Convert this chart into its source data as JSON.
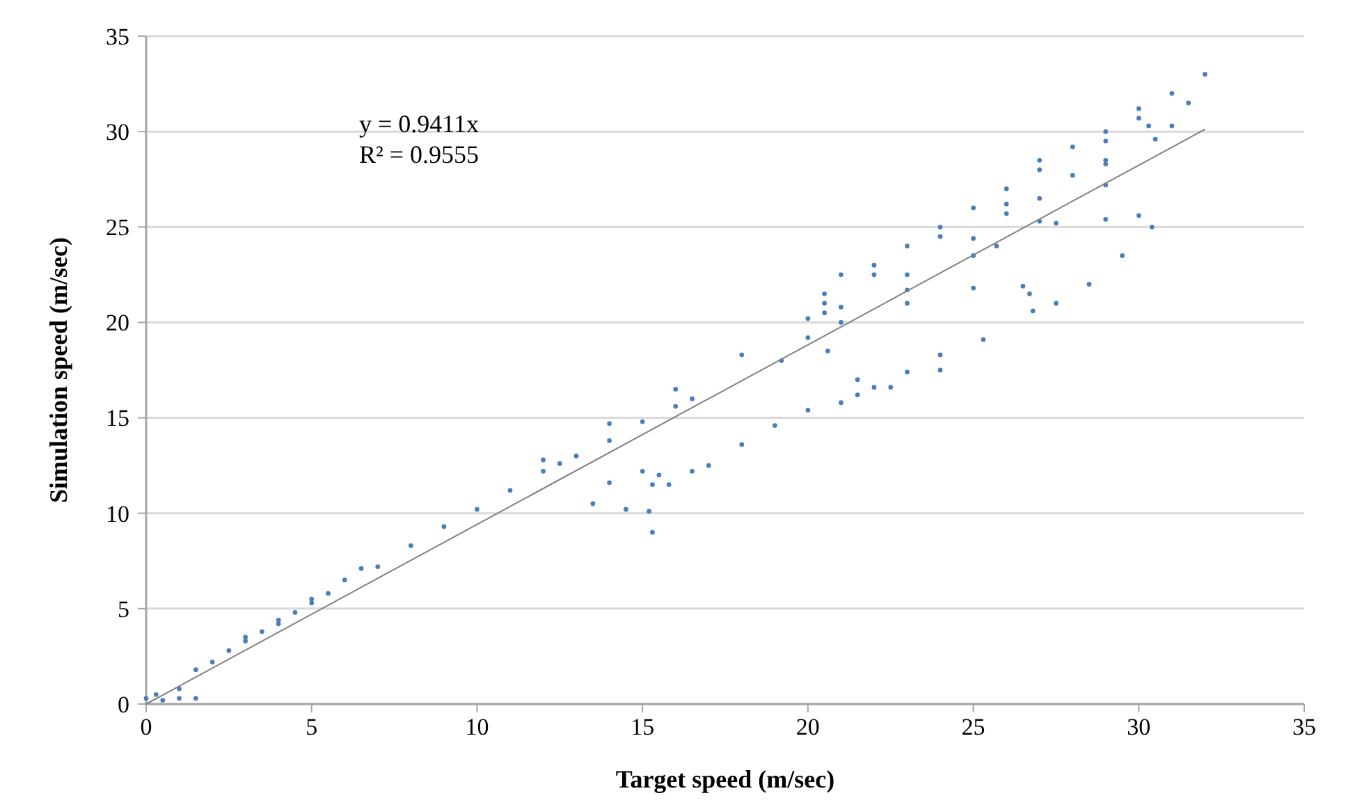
{
  "chart_data": {
    "type": "scatter",
    "xlabel": "Target speed (m/sec)",
    "ylabel": "Simulation speed (m/sec)",
    "annotations": [
      "y = 0.9411x",
      "R² = 0.9555"
    ],
    "xlim": [
      0,
      35
    ],
    "ylim": [
      0,
      35
    ],
    "xticks": [
      0,
      5,
      10,
      15,
      20,
      25,
      30,
      35
    ],
    "yticks": [
      0,
      5,
      10,
      15,
      20,
      25,
      30,
      35
    ],
    "grid": "y",
    "series": [
      {
        "marker": "circle",
        "color": "#4a7ebb",
        "x": [
          0,
          0.3,
          0.5,
          1,
          1.5,
          1,
          1.5,
          2,
          2.5,
          3,
          3.5,
          4,
          4.5,
          5,
          5.5,
          6,
          6.5,
          3,
          4,
          5,
          7,
          8,
          9,
          10,
          11,
          12,
          12.5,
          13,
          14,
          15,
          16,
          16.5,
          12,
          14,
          16,
          18,
          20,
          15.5,
          15,
          14,
          13.5,
          14.5,
          15.2,
          15.3,
          15.3,
          15.8,
          16.5,
          17,
          18,
          19,
          20,
          21,
          21.5,
          20.5,
          20.6,
          21.5,
          22.5,
          24,
          25.3,
          24,
          23,
          22,
          19.2,
          20,
          20.5,
          21,
          22,
          23,
          24,
          25,
          26,
          27,
          28,
          29,
          30,
          30.3,
          29,
          27,
          30,
          31,
          32,
          31.5,
          31,
          30.5,
          29,
          28,
          26,
          24,
          22,
          20.5,
          21,
          23,
          25,
          27,
          29,
          21,
          23,
          25,
          27,
          29,
          25.7,
          26,
          27.5,
          29,
          30,
          30.4,
          29.5,
          28.5,
          27.5,
          26.8,
          26.7,
          26.5,
          25,
          23
        ],
        "values": [
          0.3,
          0.5,
          0.2,
          0.8,
          1.8,
          0.3,
          0.3,
          2.2,
          2.8,
          3.3,
          3.8,
          4.2,
          4.8,
          5.3,
          5.8,
          6.5,
          7.1,
          3.5,
          4.4,
          5.5,
          7.2,
          8.3,
          9.3,
          10.2,
          11.2,
          12.2,
          12.6,
          13,
          13.8,
          14.8,
          15.6,
          16,
          12.8,
          14.7,
          16.5,
          18.3,
          20.2,
          12,
          12.2,
          11.6,
          10.5,
          10.2,
          10.1,
          9,
          11.5,
          11.5,
          12.2,
          12.5,
          13.6,
          14.6,
          15.4,
          15.8,
          16.2,
          20.5,
          18.5,
          17,
          16.6,
          17.5,
          19.1,
          18.3,
          17.4,
          16.6,
          18,
          19.2,
          21.5,
          22.5,
          23,
          24,
          25,
          26,
          27,
          28,
          29.2,
          30,
          30.7,
          30.3,
          29.5,
          28.5,
          31.2,
          32,
          33,
          31.5,
          30.3,
          29.6,
          28.5,
          27.7,
          26.2,
          24.5,
          22.5,
          21,
          20.8,
          22.5,
          24.4,
          26.5,
          28.3,
          20,
          21.7,
          23.5,
          25.3,
          27.2,
          24,
          25.7,
          25.2,
          25.4,
          25.6,
          25,
          23.5,
          22,
          21,
          20.6,
          21.5,
          21.9,
          21.8,
          21
        ]
      },
      {
        "type": "line",
        "color": "#808080",
        "x": [
          0,
          32
        ],
        "values": [
          0,
          30.12
        ]
      }
    ]
  }
}
